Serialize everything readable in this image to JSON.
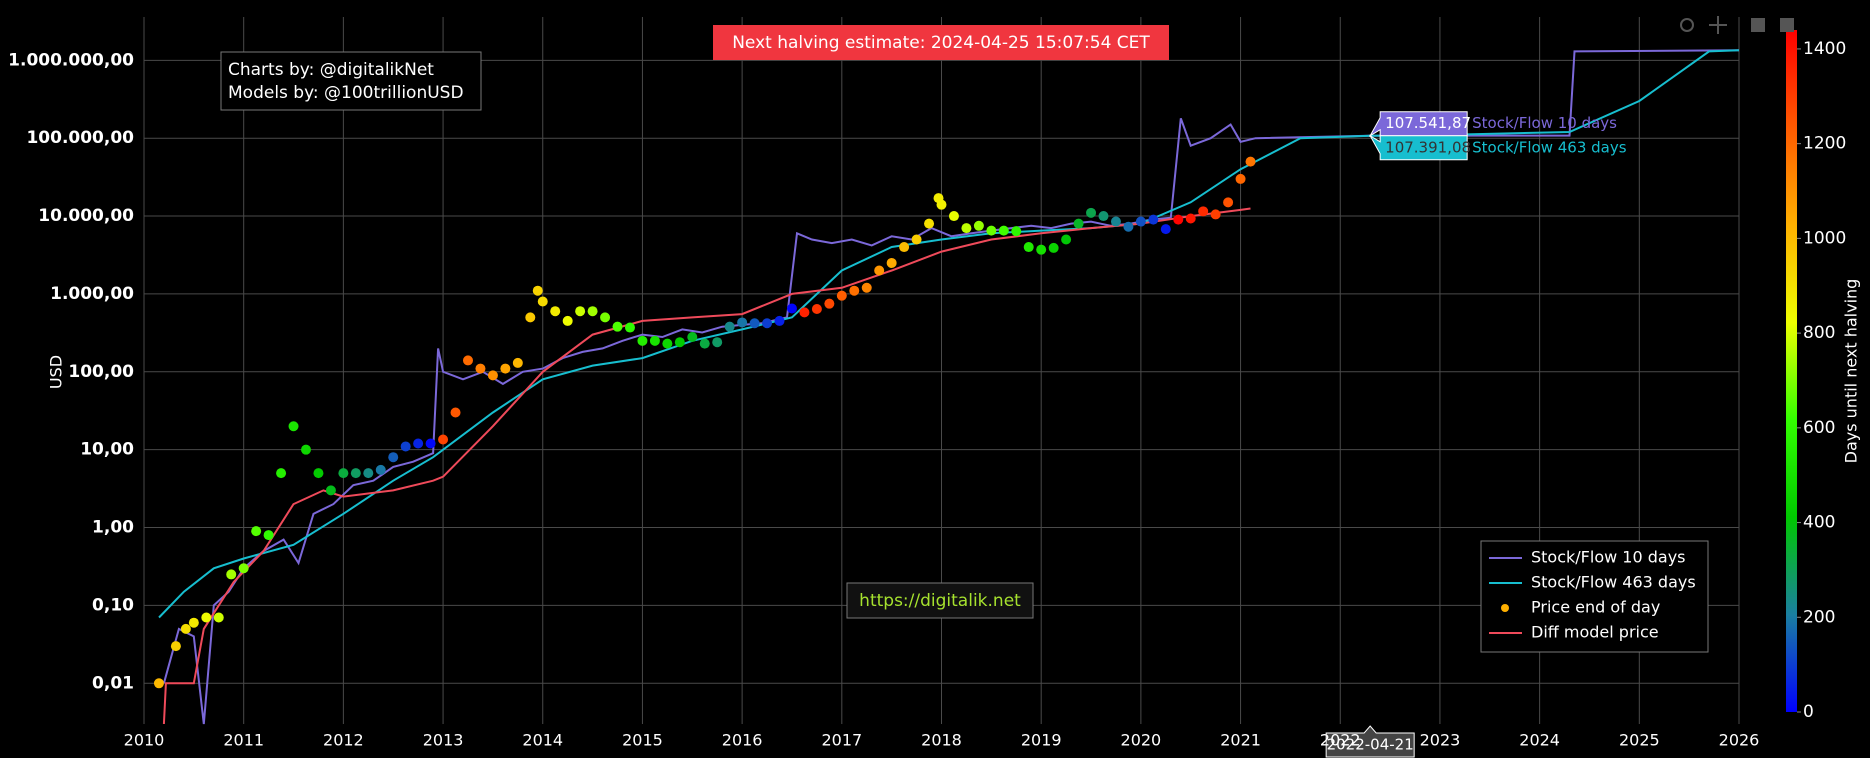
{
  "chart_data": {
    "type": "line",
    "title": "Next halving estimate: 2024-04-25 15:07:54 CET",
    "annotations": [
      "Charts by: @digitalikNet",
      "Models by: @100trillionUSD",
      "https://digitalik.net"
    ],
    "ylabel": "USD",
    "log_y": true,
    "grid": true,
    "legend": "bottom-right",
    "xlim": [
      2010,
      2026
    ],
    "xticks": [
      2010,
      2011,
      2012,
      2013,
      2014,
      2015,
      2016,
      2017,
      2018,
      2019,
      2020,
      2021,
      2022,
      2023,
      2024,
      2025,
      2026
    ],
    "ylim": [
      0.003,
      3600000
    ],
    "yticks": [
      {
        "value": 0.01,
        "label": "0,01"
      },
      {
        "value": 0.1,
        "label": "0,10"
      },
      {
        "value": 1,
        "label": "1,00"
      },
      {
        "value": 10,
        "label": "10,00"
      },
      {
        "value": 100,
        "label": "100,00"
      },
      {
        "value": 1000,
        "label": "1.000,00"
      },
      {
        "value": 10000,
        "label": "10.000,00"
      },
      {
        "value": 100000,
        "label": "100.000,00"
      },
      {
        "value": 1000000,
        "label": "1.000.000,00"
      }
    ],
    "colorbar": {
      "title": "Days until next halving",
      "clim": [
        0,
        1440
      ],
      "ticks": [
        0,
        200,
        400,
        600,
        800,
        1000,
        1200,
        1400
      ],
      "colorscale": [
        "#0000ff",
        "#1a7fa0",
        "#00c800",
        "#33ff00",
        "#eeff00",
        "#ffb000",
        "#ff5a00",
        "#ff0000"
      ]
    },
    "series": [
      {
        "name": "Stock/Flow 10 days",
        "color": "#7b68d9",
        "mode": "line",
        "x": [
          2010.2,
          2010.35,
          2010.5,
          2010.6,
          2010.7,
          2010.85,
          2011.0,
          2011.2,
          2011.4,
          2011.55,
          2011.7,
          2011.9,
          2012.1,
          2012.3,
          2012.5,
          2012.7,
          2012.9,
          2012.95,
          2013.0,
          2013.2,
          2013.4,
          2013.6,
          2013.8,
          2014.0,
          2014.2,
          2014.4,
          2014.6,
          2014.8,
          2015.0,
          2015.2,
          2015.4,
          2015.6,
          2015.8,
          2016.0,
          2016.2,
          2016.45,
          2016.55,
          2016.7,
          2016.9,
          2017.1,
          2017.3,
          2017.5,
          2017.7,
          2017.9,
          2018.1,
          2018.3,
          2018.5,
          2018.7,
          2018.9,
          2019.1,
          2019.3,
          2019.5,
          2019.7,
          2019.9,
          2020.1,
          2020.3,
          2020.4,
          2020.5,
          2020.7,
          2020.9,
          2021.0,
          2021.15,
          2022.3,
          2024.3,
          2024.35,
          2026
        ],
        "values": [
          0.01,
          0.05,
          0.04,
          0.003,
          0.1,
          0.15,
          0.3,
          0.5,
          0.7,
          0.35,
          1.5,
          2,
          3.5,
          4,
          6,
          7,
          9,
          200,
          100,
          80,
          100,
          70,
          100,
          110,
          150,
          180,
          200,
          250,
          300,
          280,
          350,
          320,
          380,
          400,
          420,
          500,
          6000,
          5000,
          4500,
          5000,
          4200,
          5500,
          5000,
          7000,
          5500,
          6000,
          6500,
          7000,
          7500,
          7000,
          8000,
          8500,
          7500,
          8000,
          9000,
          9500,
          180000,
          80000,
          100000,
          150000,
          90000,
          100000,
          107541.87,
          107800,
          1300000,
          1350000
        ]
      },
      {
        "name": "Stock/Flow 463 days",
        "color": "#17becf",
        "mode": "line",
        "x": [
          2010.15,
          2010.4,
          2010.7,
          2011.0,
          2011.5,
          2012.0,
          2012.5,
          2012.9,
          2013.5,
          2014.0,
          2014.5,
          2015.0,
          2015.5,
          2016.0,
          2016.5,
          2017.0,
          2017.5,
          2018.0,
          2018.5,
          2019.0,
          2019.5,
          2020.0,
          2020.5,
          2021.0,
          2021.6,
          2022.3,
          2023.0,
          2024.3,
          2025.0,
          2025.7,
          2026.0
        ],
        "values": [
          0.07,
          0.15,
          0.3,
          0.4,
          0.6,
          1.5,
          4,
          8,
          30,
          80,
          120,
          150,
          250,
          350,
          500,
          2000,
          4000,
          5000,
          6000,
          6500,
          7000,
          8000,
          15000,
          40000,
          100000,
          107391.08,
          110000,
          120000,
          300000,
          1300000,
          1350000
        ]
      },
      {
        "name": "Price end of day",
        "legend_color": "#ffb000",
        "mode": "markers",
        "x": [
          2010.15,
          2010.32,
          2010.42,
          2010.5,
          2010.625,
          2010.75,
          2010.875,
          2011.0,
          2011.125,
          2011.25,
          2011.375,
          2011.5,
          2011.625,
          2011.75,
          2011.875,
          2012.0,
          2012.125,
          2012.25,
          2012.375,
          2012.5,
          2012.625,
          2012.75,
          2012.875,
          2013.0,
          2013.125,
          2013.25,
          2013.375,
          2013.5,
          2013.625,
          2013.75,
          2013.875,
          2013.95,
          2014.0,
          2014.125,
          2014.25,
          2014.375,
          2014.5,
          2014.625,
          2014.75,
          2014.875,
          2015.0,
          2015.125,
          2015.25,
          2015.375,
          2015.5,
          2015.625,
          2015.75,
          2015.875,
          2016.0,
          2016.125,
          2016.25,
          2016.375,
          2016.5,
          2016.625,
          2016.75,
          2016.875,
          2017.0,
          2017.125,
          2017.25,
          2017.375,
          2017.5,
          2017.625,
          2017.75,
          2017.875,
          2017.97,
          2018.0,
          2018.125,
          2018.25,
          2018.375,
          2018.5,
          2018.625,
          2018.75,
          2018.875,
          2019.0,
          2019.125,
          2019.25,
          2019.375,
          2019.5,
          2019.625,
          2019.75,
          2019.875,
          2020.0,
          2020.125,
          2020.25,
          2020.375,
          2020.5,
          2020.625,
          2020.75,
          2020.875,
          2021.0,
          2021.1
        ],
        "values": [
          0.01,
          0.03,
          0.05,
          0.06,
          0.07,
          0.07,
          0.25,
          0.3,
          0.9,
          0.8,
          5,
          20,
          10,
          5,
          3,
          5,
          5,
          5,
          5.5,
          8,
          11,
          12,
          12,
          13.5,
          30,
          140,
          110,
          90,
          110,
          130,
          500,
          1100,
          800,
          600,
          450,
          600,
          600,
          500,
          380,
          370,
          250,
          250,
          230,
          240,
          280,
          230,
          240,
          380,
          430,
          420,
          420,
          450,
          650,
          580,
          640,
          750,
          950,
          1100,
          1200,
          2000,
          2500,
          4000,
          5000,
          8000,
          17000,
          14000,
          10000,
          7000,
          7500,
          6500,
          6500,
          6400,
          4000,
          3700,
          3900,
          5000,
          8000,
          11000,
          10000,
          8500,
          7300,
          8500,
          9000,
          6800,
          9000,
          9300,
          11500,
          10500,
          15000,
          30000,
          50000
        ],
        "color_values": [
          1007,
          945,
          909,
          880,
          834,
          788,
          743,
          697,
          652,
          606,
          560,
          515,
          469,
          423,
          378,
          332,
          287,
          241,
          195,
          150,
          104,
          58,
          13,
          1285,
          1239,
          1194,
          1148,
          1102,
          1057,
          1011,
          965,
          938,
          920,
          874,
          829,
          783,
          737,
          692,
          646,
          600,
          555,
          509,
          464,
          418,
          372,
          327,
          281,
          235,
          190,
          144,
          99,
          53,
          7,
          1363,
          1318,
          1272,
          1226,
          1181,
          1135,
          1090,
          1044,
          998,
          953,
          907,
          872,
          861,
          816,
          770,
          725,
          679,
          633,
          588,
          542,
          496,
          451,
          405,
          360,
          314,
          268,
          223,
          177,
          131,
          86,
          40,
          1434,
          1388,
          1342,
          1297,
          1251,
          1205,
          1169
        ]
      },
      {
        "name": "Diff model price",
        "color": "#ef4a5a",
        "mode": "line",
        "x": [
          2010.2,
          2010.22,
          2010.5,
          2010.6,
          2010.9,
          2011.2,
          2011.5,
          2011.8,
          2012.0,
          2012.5,
          2012.9,
          2013.0,
          2013.5,
          2014.0,
          2014.5,
          2015.0,
          2015.5,
          2016.0,
          2016.5,
          2017.0,
          2017.5,
          2018.0,
          2018.5,
          2019.0,
          2019.5,
          2020.0,
          2020.5,
          2021.0,
          2021.1
        ],
        "values": [
          0.003,
          0.01,
          0.01,
          0.05,
          0.2,
          0.5,
          2,
          3,
          2.5,
          3,
          4,
          4.5,
          20,
          100,
          300,
          450,
          500,
          550,
          1000,
          1200,
          2000,
          3500,
          5000,
          6000,
          7000,
          8000,
          10000,
          12000,
          12500
        ]
      }
    ],
    "hover": {
      "x": 2022.3,
      "x_label": "2022-04-21",
      "items": [
        {
          "name": "Stock/Flow 10 days",
          "color": "#7b68d9",
          "value": 107541.87,
          "label": "107.541,87"
        },
        {
          "name": "Stock/Flow 463 days",
          "color": "#17becf",
          "value": 107391.08,
          "label": "107.391,08"
        }
      ]
    }
  }
}
